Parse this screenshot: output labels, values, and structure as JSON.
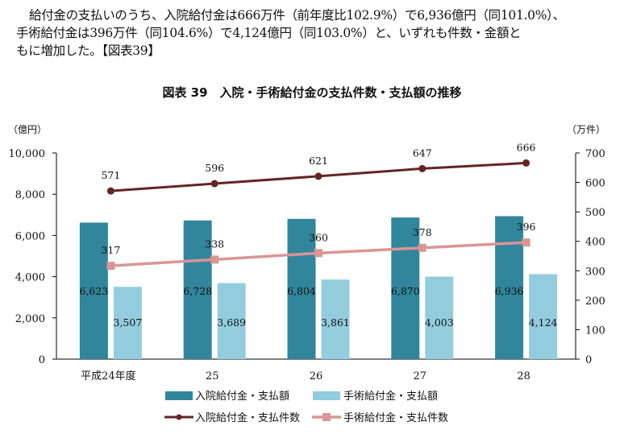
{
  "paragraph": {
    "line1": "給付金の支払いのうち、入院給付金は666万件（前年度比102.9%）で6,936億円（同101.0%）、",
    "line2": "手術給付金は396万件（同104.6%）で4,124億円（同103.0%）と、いずれも件数・金額と",
    "line3": "もに増加した。【図表39】"
  },
  "chart_data": {
    "type": "bar+line",
    "title": "図表 39　入院・手術給付金の支払件数・支払額の推移",
    "categories": [
      "平成24年度",
      "25",
      "26",
      "27",
      "28"
    ],
    "left_axis": {
      "unit": "（億円）",
      "range": [
        0,
        10000
      ],
      "ticks": [
        "0",
        "2,000",
        "4,000",
        "6,000",
        "8,000",
        "10,000"
      ],
      "tick_values": [
        0,
        2000,
        4000,
        6000,
        8000,
        10000
      ]
    },
    "right_axis": {
      "unit": "（万件）",
      "range": [
        0,
        700
      ],
      "ticks": [
        "0",
        "100",
        "200",
        "300",
        "400",
        "500",
        "600",
        "700"
      ],
      "tick_values": [
        0,
        100,
        200,
        300,
        400,
        500,
        600,
        700
      ]
    },
    "bar_series": [
      {
        "name": "入院給付金・支払額",
        "axis": "left",
        "color": "#31869b",
        "values": [
          6623,
          6728,
          6804,
          6870,
          6936
        ],
        "labels": [
          "6,623",
          "6,728",
          "6,804",
          "6,870",
          "6,936"
        ]
      },
      {
        "name": "手術給付金・支払額",
        "axis": "left",
        "color": "#93cddd",
        "values": [
          3507,
          3689,
          3861,
          4003,
          4124
        ],
        "labels": [
          "3,507",
          "3,689",
          "3,861",
          "4,003",
          "4,124"
        ]
      }
    ],
    "line_series": [
      {
        "name": "入院給付金・支払件数",
        "axis": "right",
        "color": "#632523",
        "marker": "circle",
        "values": [
          571,
          596,
          621,
          647,
          666
        ],
        "labels": [
          "571",
          "596",
          "621",
          "647",
          "666"
        ]
      },
      {
        "name": "手術給付金・支払件数",
        "axis": "right",
        "color": "#d99694",
        "marker": "square",
        "values": [
          317,
          338,
          360,
          378,
          396
        ],
        "labels": [
          "317",
          "338",
          "360",
          "378",
          "396"
        ]
      }
    ],
    "legend_position": "bottom",
    "grid": false
  }
}
